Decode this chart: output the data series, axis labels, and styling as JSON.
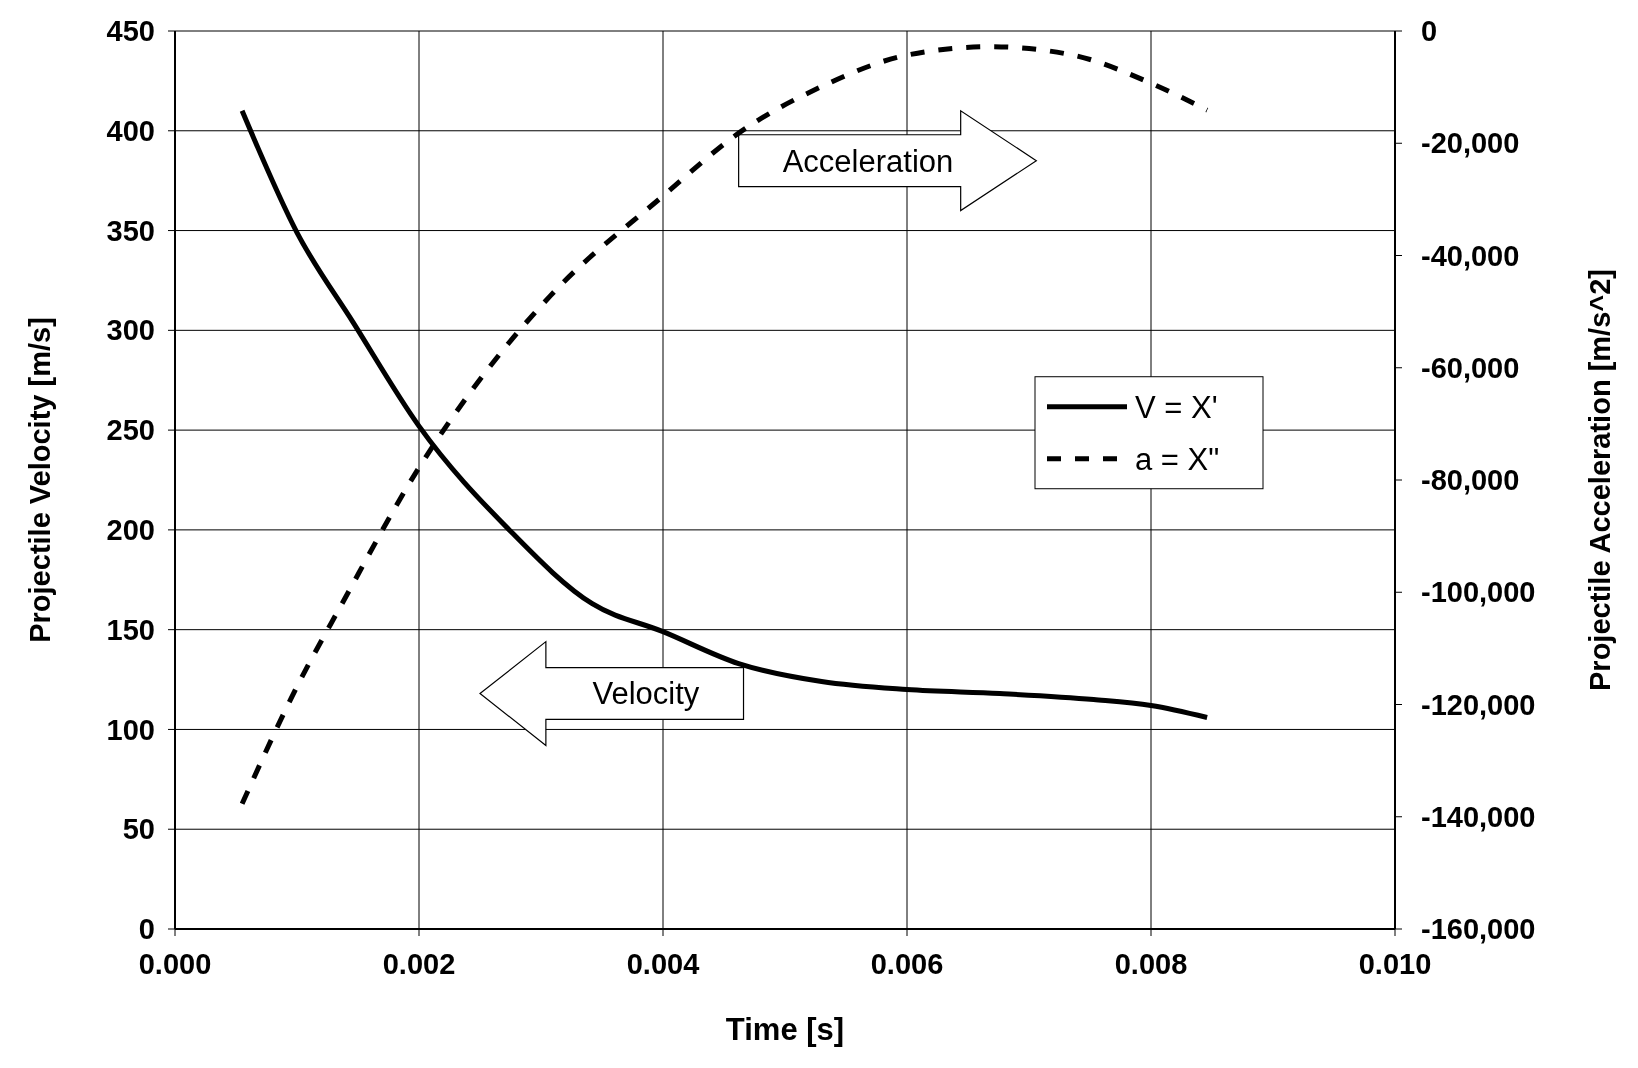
{
  "chart_data": {
    "type": "line",
    "xlabel": "Time  [s]",
    "ylabel": "Projectile Velocity  [m/s]",
    "y2label": "Projectile Acceleration  [m/s^2]",
    "annotations": [
      "Acceleration",
      "Velocity"
    ],
    "series": [
      {
        "name": "V = X'",
        "color": "#000000",
        "line_style": "solid",
        "x": [
          0.00055,
          0.001,
          0.00146,
          0.002,
          0.00274,
          0.00342,
          0.004,
          0.00462,
          0.0053,
          0.006,
          0.00676,
          0.00753,
          0.008,
          0.00846
        ],
        "values": [
          410,
          349,
          304,
          252,
          200,
          163,
          149,
          133,
          124,
          120,
          118,
          115,
          112,
          106
        ]
      },
      {
        "name": "a = X\"",
        "color": "#000000",
        "line_style": "dashed",
        "axis": "y2",
        "x": [
          0.00055,
          0.001,
          0.00137,
          0.002,
          0.00257,
          0.00308,
          0.004,
          0.00462,
          0.0053,
          0.006,
          0.00668,
          0.00736,
          0.008,
          0.00846
        ],
        "values": [
          -137700,
          -116800,
          -102000,
          -77800,
          -60100,
          -47100,
          -29400,
          -18200,
          -9900,
          -4300,
          -2800,
          -4300,
          -9300,
          -14100
        ]
      }
    ],
    "xlim": [
      0,
      0.01
    ],
    "xticks": [
      {
        "value": 0,
        "label": "0.000"
      },
      {
        "value": 0.002,
        "label": "0.002"
      },
      {
        "value": 0.004,
        "label": "0.004"
      },
      {
        "value": 0.006,
        "label": "0.006"
      },
      {
        "value": 0.008,
        "label": "0.008"
      },
      {
        "value": 0.01,
        "label": "0.010"
      }
    ],
    "ylim": [
      0,
      450
    ],
    "yticks": [
      0,
      50,
      100,
      150,
      200,
      250,
      300,
      350,
      400,
      450
    ],
    "y2lim": [
      -160000,
      0
    ],
    "y2ticks": [
      {
        "value": -160000,
        "label": "-160,000"
      },
      {
        "value": -140000,
        "label": "-140,000"
      },
      {
        "value": -120000,
        "label": "-120,000"
      },
      {
        "value": -100000,
        "label": "-100,000"
      },
      {
        "value": -80000,
        "label": "-80,000"
      },
      {
        "value": -60000,
        "label": "-60,000"
      },
      {
        "value": -40000,
        "label": "-40,000"
      },
      {
        "value": -20000,
        "label": "-20,000"
      },
      0
    ],
    "grid": true,
    "legend": "right"
  }
}
